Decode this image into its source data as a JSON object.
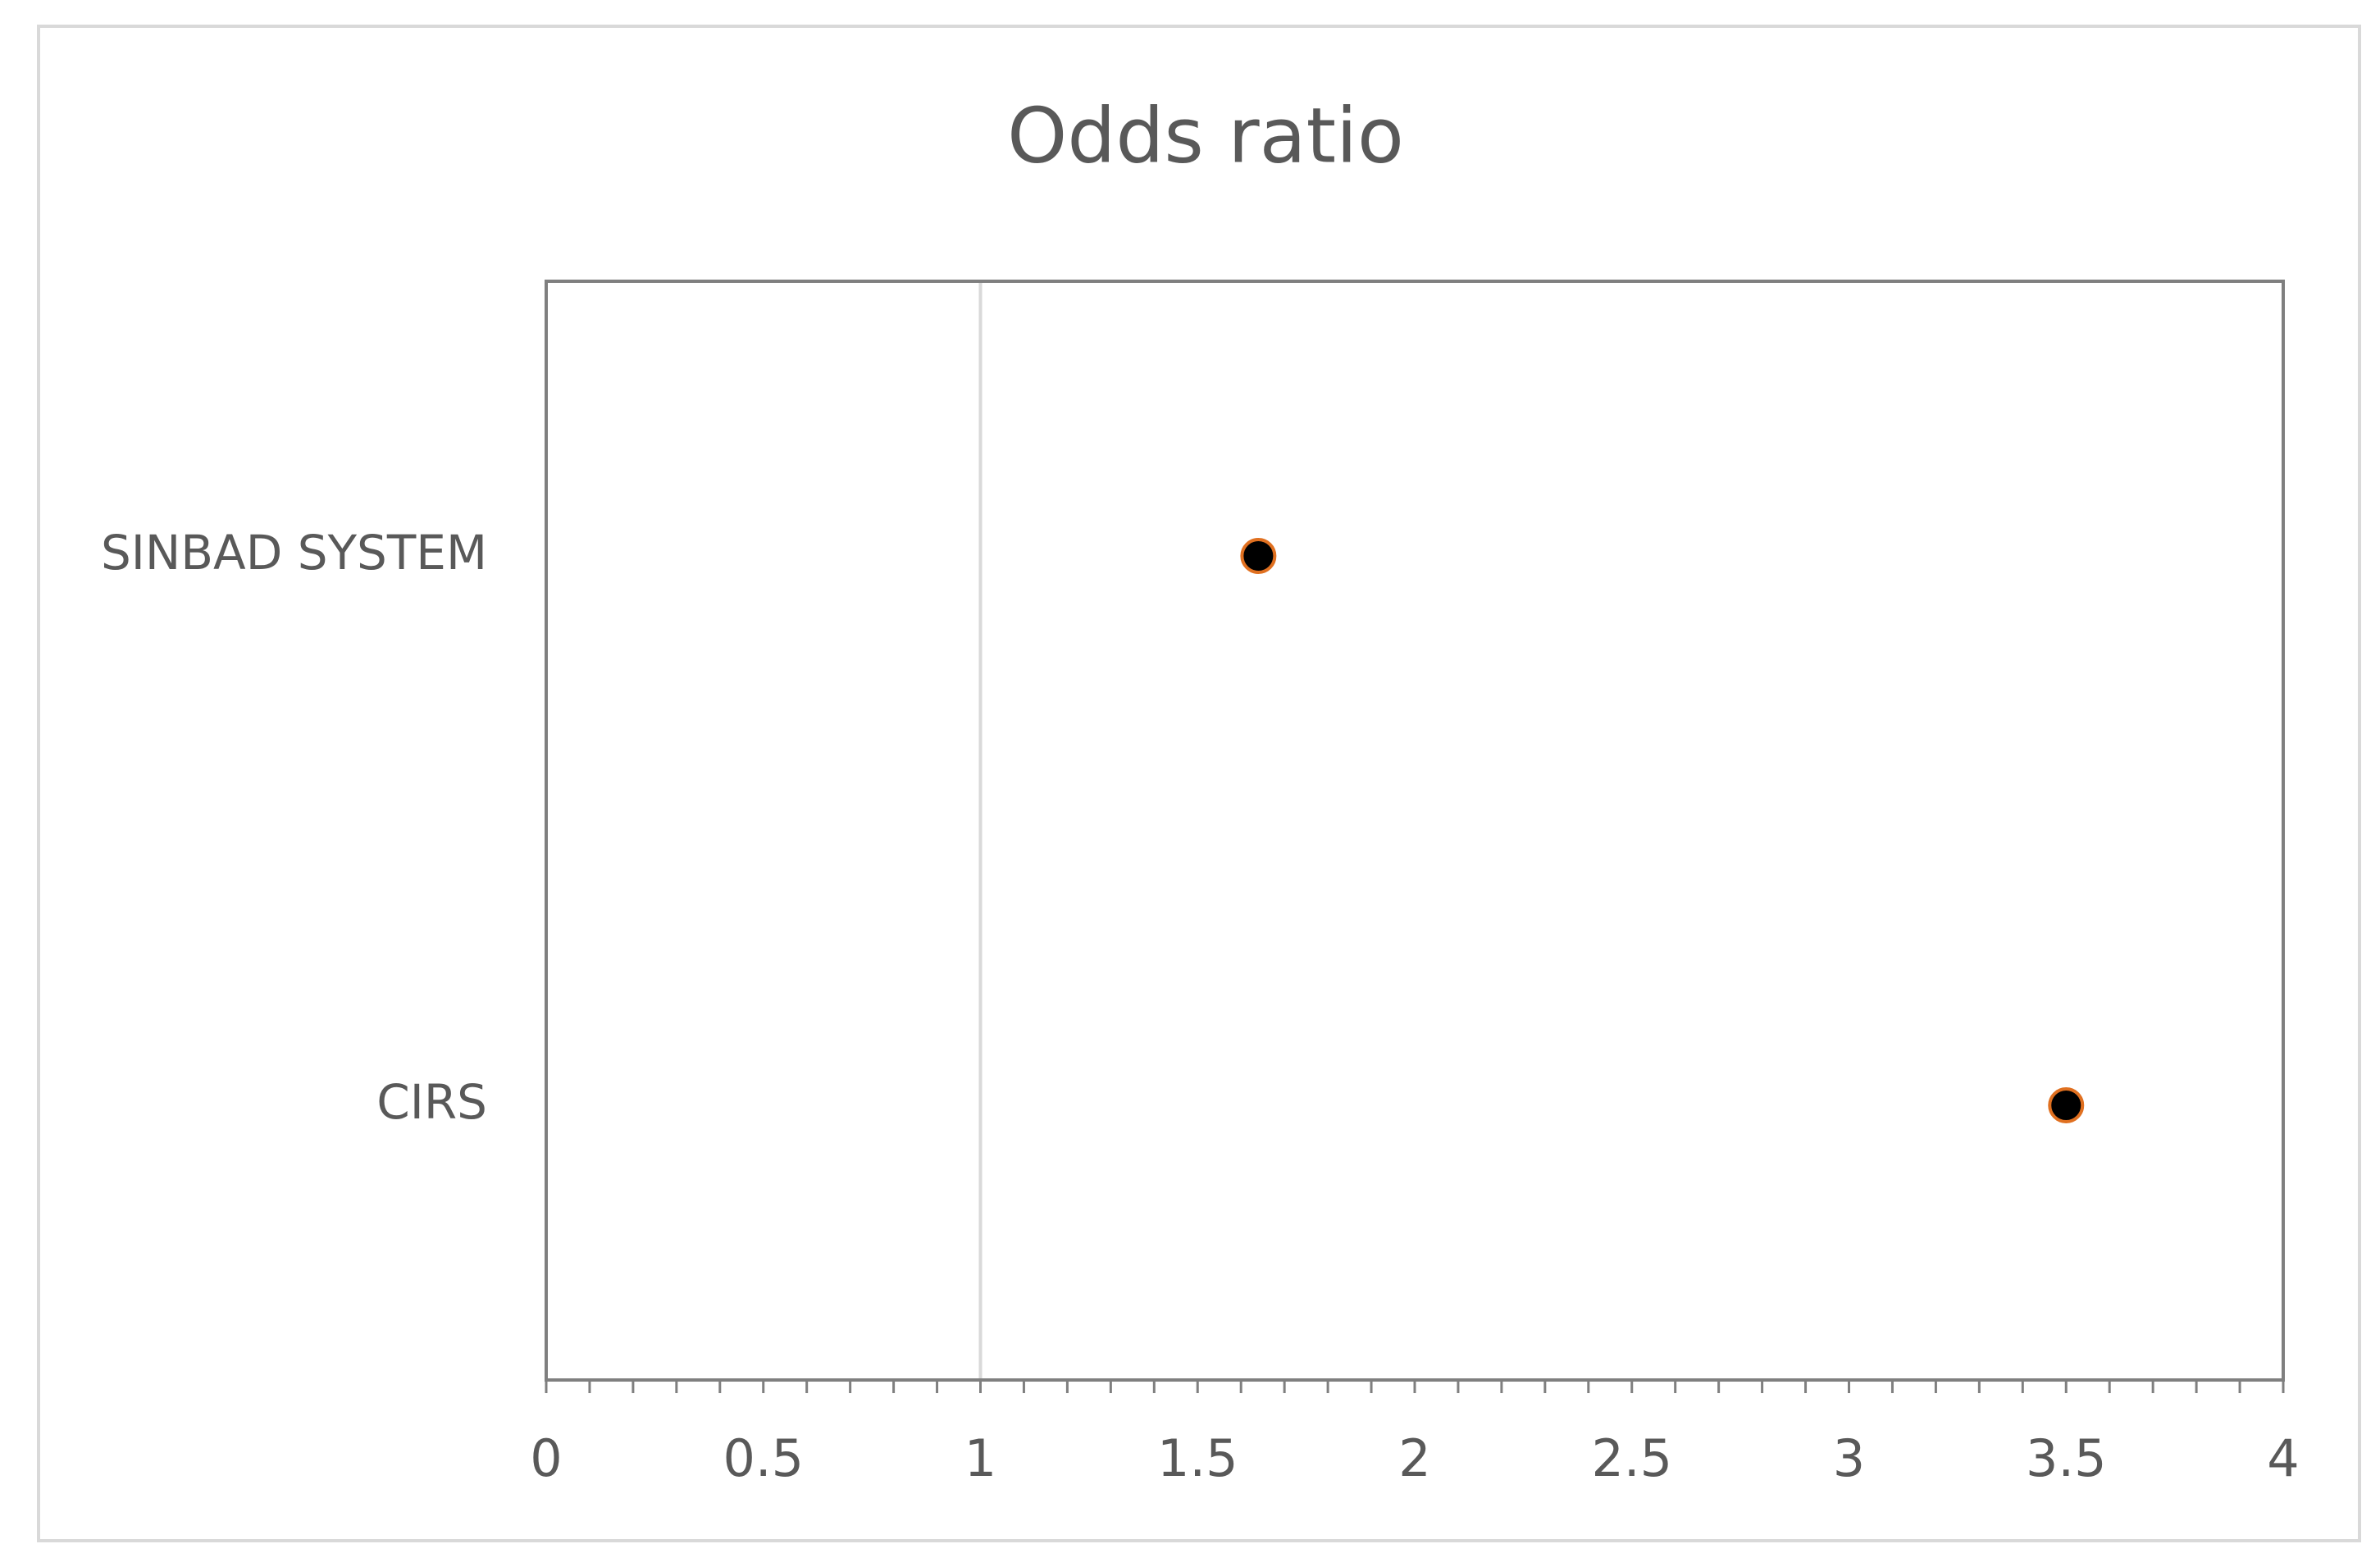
{
  "chart_data": {
    "type": "dot",
    "title": "Odds ratio",
    "categories": [
      "SINBAD SYSTEM",
      "CIRS"
    ],
    "values": [
      1.64,
      3.5
    ],
    "color": "#000000",
    "edge_color": "#e07020",
    "xlim": [
      0,
      4
    ],
    "xticks": [
      0,
      0.5,
      1,
      1.5,
      2,
      2.5,
      3,
      3.5,
      4
    ],
    "minor_ticks_per_major": 5,
    "reference_x": 1
  }
}
